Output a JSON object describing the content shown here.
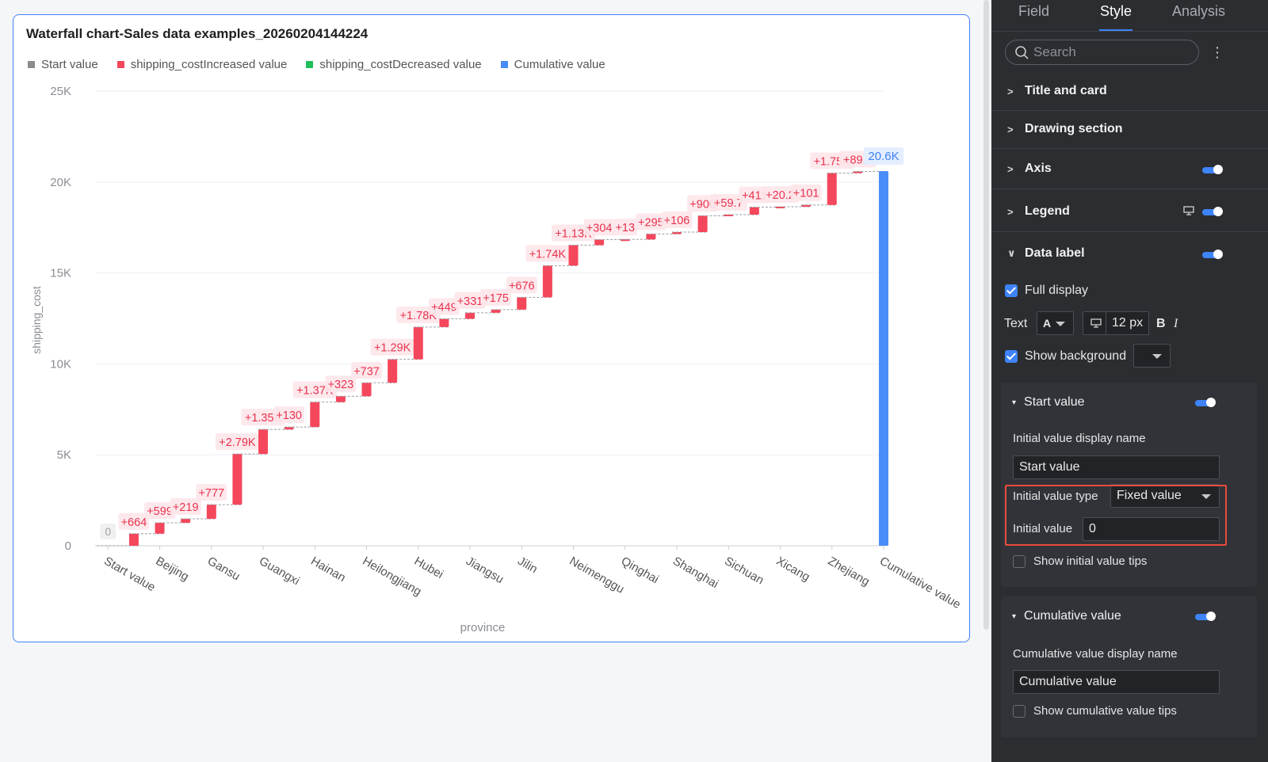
{
  "chart": {
    "title": "Waterfall chart-Sales data examples_20260204144224"
  },
  "legend": [
    {
      "label": "Start value",
      "color": "#8c8c8c"
    },
    {
      "label": "shipping_costIncreased value",
      "color": "#f5475c"
    },
    {
      "label": "shipping_costDecreased value",
      "color": "#1fbf5a"
    },
    {
      "label": "Cumulative value",
      "color": "#4a8cf7"
    }
  ],
  "chart_data": {
    "type": "bar",
    "subtype": "waterfall",
    "title": "Waterfall chart-Sales data examples_20260204144224",
    "xlabel": "province",
    "ylabel": "shipping_cost",
    "ylim": [
      0,
      25000
    ],
    "y_ticks": [
      "0",
      "5K",
      "10K",
      "15K",
      "20K",
      "25K"
    ],
    "y_tick_values": [
      0,
      5000,
      10000,
      15000,
      20000,
      25000
    ],
    "x_tick_labels": [
      "Start value",
      "Beijing",
      "Gansu",
      "Guangxi",
      "Hainan",
      "Heilongjiang",
      "Hubei",
      "Jiangsu",
      "Jilin",
      "Neimenggu",
      "Qinghai",
      "Shanghai",
      "Sichuan",
      "Xicang",
      "Zhejiang",
      "Cumulative value"
    ],
    "grid": true,
    "legend_position": "top-left",
    "start_value": {
      "value": 0,
      "label": "0"
    },
    "increments": [
      {
        "value": 664,
        "label": "+664"
      },
      {
        "value": 599,
        "label": "+599"
      },
      {
        "value": 219,
        "label": "+219"
      },
      {
        "value": 777,
        "label": "+777"
      },
      {
        "value": 2790,
        "label": "+2.79K"
      },
      {
        "value": 1350,
        "label": "+1.35K"
      },
      {
        "value": 130,
        "label": "+130"
      },
      {
        "value": 1370,
        "label": "+1.37K"
      },
      {
        "value": 323,
        "label": "+323"
      },
      {
        "value": 737,
        "label": "+737"
      },
      {
        "value": 1290,
        "label": "+1.29K"
      },
      {
        "value": 1780,
        "label": "+1.78K"
      },
      {
        "value": 449,
        "label": "+449"
      },
      {
        "value": 331,
        "label": "+331"
      },
      {
        "value": 175,
        "label": "+175"
      },
      {
        "value": 676,
        "label": "+676"
      },
      {
        "value": 1740,
        "label": "+1.74K"
      },
      {
        "value": 1130,
        "label": "+1.13K"
      },
      {
        "value": 304,
        "label": "+304"
      },
      {
        "value": 13,
        "label": "+13"
      },
      {
        "value": 295,
        "label": "+295"
      },
      {
        "value": 106,
        "label": "+106"
      },
      {
        "value": 900,
        "label": "+900"
      },
      {
        "value": 59.7,
        "label": "+59.7"
      },
      {
        "value": 411,
        "label": "+411"
      },
      {
        "value": 20.2,
        "label": "+20.2"
      },
      {
        "value": 101,
        "label": "+101"
      },
      {
        "value": 1750,
        "label": "+1.75K"
      },
      {
        "value": 89.2,
        "label": "+89.2"
      }
    ],
    "cumulative": {
      "value": 20600,
      "label": "20.6K"
    }
  },
  "panel": {
    "tabs": [
      "Field",
      "Style",
      "Analysis"
    ],
    "active_tab": "Style",
    "search_placeholder": "Search",
    "sections": {
      "title_and_card": "Title and card",
      "drawing_section": "Drawing section",
      "axis": "Axis",
      "legend": "Legend",
      "data_label": "Data label"
    },
    "data_label": {
      "full_display": "Full display",
      "text_label": "Text",
      "font_glyph": "A",
      "font_size": "12 px",
      "bold": "B",
      "italic": "I",
      "show_background": "Show background"
    },
    "start_value": {
      "header": "Start value",
      "display_name_label": "Initial value display name",
      "display_name_value": "Start value",
      "type_label": "Initial value type",
      "type_value": "Fixed value",
      "initial_value_label": "Initial value",
      "initial_value": "0",
      "tips_label": "Show initial value tips"
    },
    "cumulative_value": {
      "header": "Cumulative value",
      "display_name_label": "Cumulative value display name",
      "display_name_value": "Cumulative value",
      "tips_label": "Show cumulative value tips"
    }
  }
}
